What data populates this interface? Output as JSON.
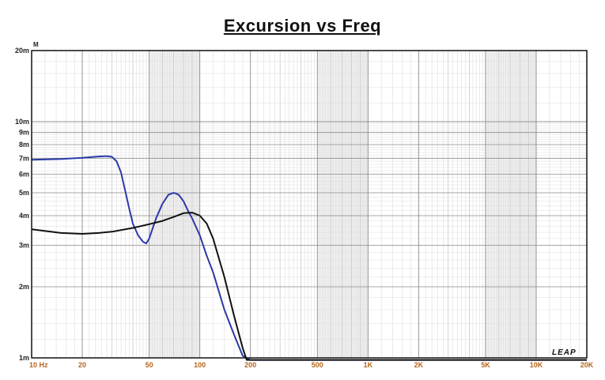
{
  "chart_data": {
    "type": "line",
    "title": "Excursion vs Freq",
    "ylabel": "M",
    "xscale": "log",
    "yscale": "log",
    "xlim": [
      10,
      20000
    ],
    "ylim": [
      0.001,
      0.02
    ],
    "grid": true,
    "x_ticks": [
      {
        "value": 10,
        "label": "10 Hz"
      },
      {
        "value": 20,
        "label": "20"
      },
      {
        "value": 50,
        "label": "50"
      },
      {
        "value": 100,
        "label": "100"
      },
      {
        "value": 200,
        "label": "200"
      },
      {
        "value": 500,
        "label": "500"
      },
      {
        "value": 1000,
        "label": "1K"
      },
      {
        "value": 2000,
        "label": "2K"
      },
      {
        "value": 5000,
        "label": "5K"
      },
      {
        "value": 10000,
        "label": "10K"
      },
      {
        "value": 20000,
        "label": "20K"
      }
    ],
    "y_ticks": [
      {
        "value": 0.001,
        "label": "1m"
      },
      {
        "value": 0.002,
        "label": "2m"
      },
      {
        "value": 0.003,
        "label": "3m"
      },
      {
        "value": 0.004,
        "label": "4m"
      },
      {
        "value": 0.005,
        "label": "5m"
      },
      {
        "value": 0.006,
        "label": "6m"
      },
      {
        "value": 0.007,
        "label": "7m"
      },
      {
        "value": 0.008,
        "label": "8m"
      },
      {
        "value": 0.009,
        "label": "9m"
      },
      {
        "value": 0.01,
        "label": "10m"
      },
      {
        "value": 0.02,
        "label": "20m"
      }
    ],
    "series": [
      {
        "color": "#2a3aa8",
        "x": [
          10,
          15,
          20,
          25,
          28,
          30,
          32,
          34,
          36,
          38,
          40,
          43,
          46,
          48,
          50,
          55,
          60,
          65,
          70,
          75,
          80,
          85,
          90,
          100,
          110,
          120,
          140,
          160,
          180,
          200,
          1000,
          20000
        ],
        "y": [
          0.0069,
          0.00695,
          0.00703,
          0.00712,
          0.00715,
          0.0071,
          0.0068,
          0.0061,
          0.0051,
          0.0043,
          0.0037,
          0.0033,
          0.0031,
          0.00305,
          0.0032,
          0.0039,
          0.0045,
          0.0049,
          0.005,
          0.0049,
          0.0046,
          0.0042,
          0.0039,
          0.0033,
          0.0027,
          0.0023,
          0.0016,
          0.00125,
          0.00102,
          0.00098,
          0.00098,
          0.00098
        ]
      },
      {
        "color": "#111111",
        "x": [
          10,
          15,
          20,
          25,
          30,
          40,
          50,
          60,
          70,
          80,
          90,
          100,
          110,
          120,
          140,
          160,
          180,
          190,
          200,
          1000,
          20000
        ],
        "y": [
          0.0035,
          0.00338,
          0.00335,
          0.00338,
          0.00342,
          0.00355,
          0.00368,
          0.0038,
          0.00395,
          0.0041,
          0.00412,
          0.004,
          0.0037,
          0.0032,
          0.0022,
          0.0015,
          0.0011,
          0.00098,
          0.00098,
          0.00098,
          0.00098
        ]
      }
    ],
    "watermark": "LEAP"
  }
}
